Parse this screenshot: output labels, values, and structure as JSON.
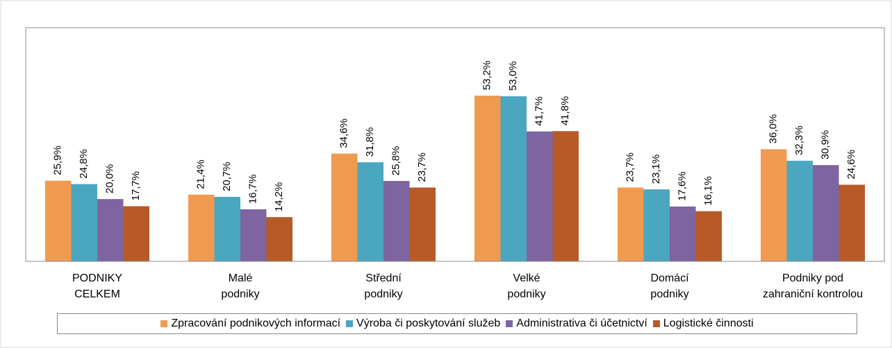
{
  "chart_data": {
    "type": "bar",
    "categories": [
      "PODNIKY\nCELKEM",
      "Malé\npodniky",
      "Střední\npodniky",
      "Velké\npodniky",
      "Domácí\npodniky",
      "Podniky pod\nzahraniční kontrolou"
    ],
    "series": [
      {
        "name": "Zpracování podnikových informací",
        "color": "#f09a50",
        "values": [
          25.9,
          21.4,
          34.6,
          53.2,
          23.7,
          36.0
        ],
        "value_labels": [
          "25,9%",
          "21,4%",
          "34,6%",
          "53,2%",
          "23,7%",
          "36,0%"
        ]
      },
      {
        "name": "Výroba či poskytování služeb",
        "color": "#4ba6c0",
        "values": [
          24.8,
          20.7,
          31.8,
          53.0,
          23.1,
          32.3
        ],
        "value_labels": [
          "24,8%",
          "20,7%",
          "31,8%",
          "53,0%",
          "23,1%",
          "32,3%"
        ]
      },
      {
        "name": "Administrativa či účetnictví",
        "color": "#7e64a0",
        "values": [
          20.0,
          16.7,
          25.8,
          41.7,
          17.6,
          30.9
        ],
        "value_labels": [
          "20,0%",
          "16,7%",
          "25,8%",
          "41,7%",
          "17,6%",
          "30,9%"
        ]
      },
      {
        "name": "Logistické činnosti",
        "color": "#b75a28",
        "values": [
          17.7,
          14.2,
          23.7,
          41.8,
          16.1,
          24.6
        ],
        "value_labels": [
          "17,7%",
          "14,2%",
          "23,7%",
          "41,8%",
          "16,1%",
          "24,6%"
        ]
      }
    ],
    "ylim": [
      0,
      75
    ]
  }
}
